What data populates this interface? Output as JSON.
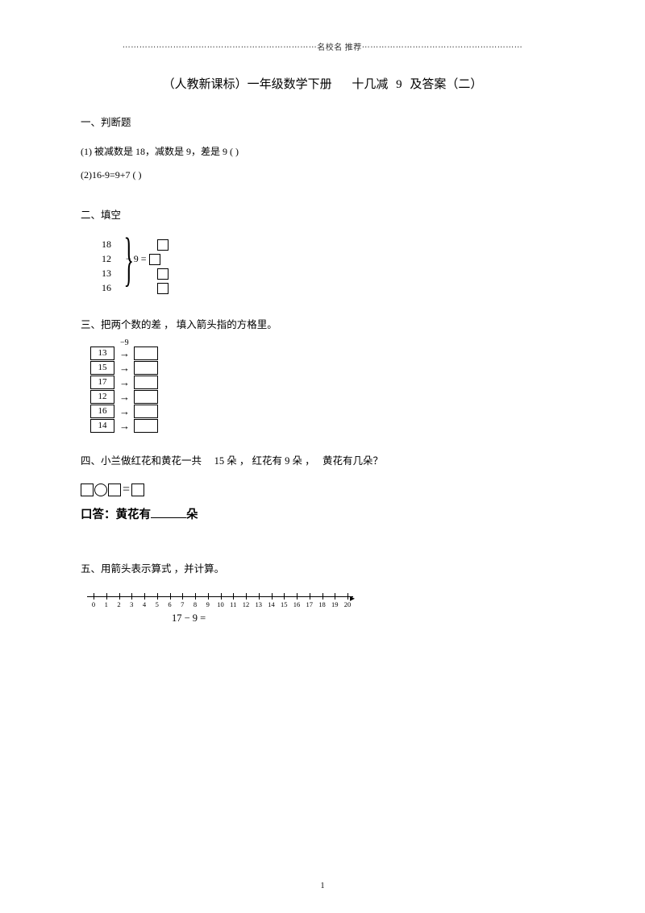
{
  "header": "⋯⋯⋯⋯⋯⋯⋯⋯⋯⋯⋯⋯⋯⋯⋯⋯⋯⋯⋯⋯⋯⋯⋯名校名 推荐⋯⋯⋯⋯⋯⋯⋯⋯⋯⋯⋯⋯⋯⋯⋯⋯⋯⋯⋯",
  "title": "（人教新课标）一年级数学下册　 十几减 9 及答案（二）",
  "s1": {
    "heading": "一、判断题",
    "q1": "(1) 被减数是  18，减数是  9，差是  9 ( )",
    "q2": "(2)16-9=9+7 ( )"
  },
  "s2": {
    "heading": "二、填空",
    "nums": [
      "18",
      "12",
      "13",
      "16"
    ],
    "op": "− 9 ="
  },
  "s3": {
    "heading": "三、把两个数的差 ， 填入箭头指的方格里。",
    "label": "−9",
    "rows": [
      "13",
      "15",
      "17",
      "12",
      "16",
      "14"
    ]
  },
  "s4": {
    "heading": "四、小兰做红花和黄花一共　  15 朵 ， 红花有   9  朵 ，　 黄花有几朵？",
    "eqchar": "=",
    "ans_prefix": "口答：黄花有",
    "ans_suffix": "朵"
  },
  "s5": {
    "heading": "五、用箭头表示算式  ，并计算。",
    "ticks": [
      "0",
      "1",
      "2",
      "3",
      "4",
      "5",
      "6",
      "7",
      "8",
      "9",
      "10",
      "11",
      "12",
      "13",
      "14",
      "15",
      "16",
      "17",
      "18",
      "19",
      "20"
    ],
    "eq": "17 − 9 ="
  },
  "page": "1"
}
